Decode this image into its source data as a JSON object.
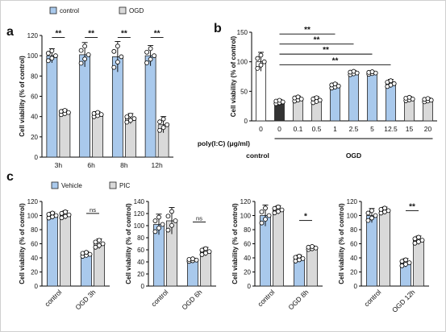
{
  "colors": {
    "blue": "#a9c9ec",
    "grey": "#d9d9d9",
    "black": "#333333",
    "border": "#222222"
  },
  "chart_data": [
    {
      "panel": "a",
      "type": "bar",
      "ylabel": "Cell viability (% of control)",
      "ylim": [
        0,
        120
      ],
      "yticks": [
        0,
        20,
        40,
        60,
        80,
        100,
        120
      ],
      "categories": [
        "3h",
        "6h",
        "8h",
        "12h"
      ],
      "legend": [
        "control",
        "OGD"
      ],
      "series": [
        {
          "name": "control",
          "values": [
            100,
            101,
            99,
            100
          ],
          "err": [
            7,
            12,
            15,
            10
          ]
        },
        {
          "name": "OGD",
          "values": [
            44,
            42,
            38,
            32
          ],
          "err": [
            3,
            3,
            5,
            8
          ]
        }
      ],
      "significance": [
        "**",
        "**",
        "**",
        "**"
      ]
    },
    {
      "panel": "b",
      "type": "bar",
      "ylabel": "Cell viability (% of control)",
      "ylim": [
        0,
        150
      ],
      "yticks": [
        0,
        50,
        100,
        150
      ],
      "categories": [
        "0",
        "0",
        "0.1",
        "0.5",
        "1",
        "2.5",
        "5",
        "12.5",
        "15",
        "20"
      ],
      "values": [
        100,
        32,
        37,
        35,
        59,
        81,
        81,
        63,
        37,
        35
      ],
      "err": [
        16,
        4,
        5,
        6,
        5,
        4,
        3,
        7,
        4,
        4
      ],
      "xaxis_title": "poly(I:C) (μg/ml)",
      "group_labels": [
        "control",
        "OGD"
      ],
      "significance": [
        {
          "from": 1,
          "to": 4,
          "label": "**"
        },
        {
          "from": 1,
          "to": 5,
          "label": "**"
        },
        {
          "from": 1,
          "to": 6,
          "label": "**"
        },
        {
          "from": 1,
          "to": 7,
          "label": "**"
        }
      ]
    },
    {
      "panel": "c",
      "legend": [
        "Vehicle",
        "PIC"
      ],
      "subcharts": [
        {
          "type": "bar",
          "ylabel": "Cell viability (% of control)",
          "ylim": [
            0,
            120
          ],
          "yticks": [
            0,
            20,
            40,
            60,
            80,
            100,
            120
          ],
          "categories": [
            "control",
            "OGD 3h"
          ],
          "series": [
            {
              "name": "Vehicle",
              "values": [
                100,
                45
              ],
              "err": [
                5,
                4
              ]
            },
            {
              "name": "PIC",
              "values": [
                101,
                60
              ],
              "err": [
                6,
                7
              ]
            }
          ],
          "significance": "ns"
        },
        {
          "type": "bar",
          "ylabel": "Cell viability (% of control)",
          "ylim": [
            0,
            140
          ],
          "yticks": [
            0,
            20,
            40,
            60,
            80,
            100,
            120,
            140
          ],
          "categories": [
            "control",
            "OGD 6h"
          ],
          "series": [
            {
              "name": "Vehicle",
              "values": [
                102,
                43
              ],
              "err": [
                17,
                3
              ]
            },
            {
              "name": "PIC",
              "values": [
                108,
                57
              ],
              "err": [
                22,
                7
              ]
            }
          ],
          "significance": "ns"
        },
        {
          "type": "bar",
          "ylabel": "Cell viability (% of control)",
          "ylim": [
            0,
            120
          ],
          "yticks": [
            0,
            20,
            40,
            60,
            80,
            100,
            120
          ],
          "categories": [
            "control",
            "OGD 8h"
          ],
          "series": [
            {
              "name": "Vehicle",
              "values": [
                100,
                39
              ],
              "err": [
                15,
                5
              ]
            },
            {
              "name": "PIC",
              "values": [
                108,
                54
              ],
              "err": [
                6,
                3
              ]
            }
          ],
          "significance": "*"
        },
        {
          "type": "bar",
          "ylabel": "Cell viability (% of control)",
          "ylim": [
            0,
            120
          ],
          "yticks": [
            0,
            20,
            40,
            60,
            80,
            100,
            120
          ],
          "categories": [
            "control",
            "OGD 12h"
          ],
          "series": [
            {
              "name": "Vehicle",
              "values": [
                100,
                33
              ],
              "err": [
                10,
                6
              ]
            },
            {
              "name": "PIC",
              "values": [
                107,
                65
              ],
              "err": [
                5,
                6
              ]
            }
          ],
          "significance": "**"
        }
      ]
    }
  ]
}
